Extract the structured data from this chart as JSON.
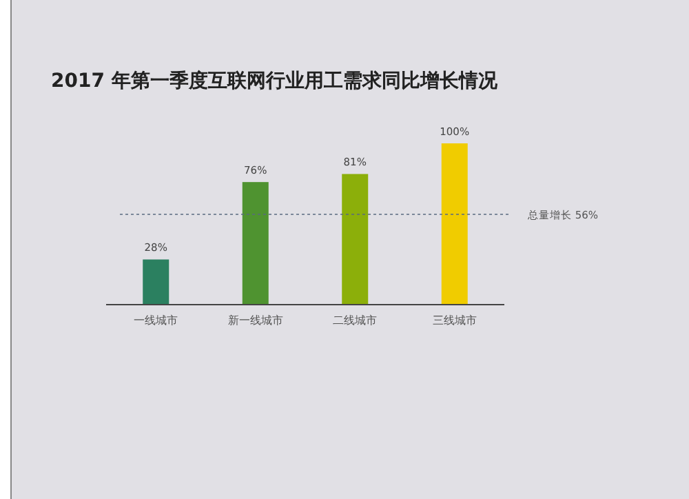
{
  "chart_data": {
    "type": "bar",
    "title": "2017 年第一季度互联网行业用工需求同比增长情况",
    "categories": [
      "一线城市",
      "新一线城市",
      "二线城市",
      "三线城市"
    ],
    "values": [
      28,
      76,
      81,
      100
    ],
    "colors": [
      "#2b8060",
      "#4f9330",
      "#8caf0a",
      "#f0cc00"
    ],
    "value_labels": [
      "28%",
      "76%",
      "81%",
      "100%"
    ],
    "ref_lines": [
      {
        "axis": "y",
        "value": 56,
        "label": "总量增长  56%",
        "color": "#5a6a80",
        "line_style": "dashed"
      }
    ]
  }
}
